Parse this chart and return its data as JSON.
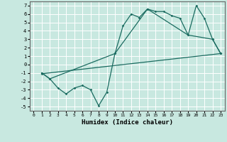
{
  "title": "",
  "xlabel": "Humidex (Indice chaleur)",
  "xlim": [
    -0.5,
    23.5
  ],
  "ylim": [
    -5.5,
    7.5
  ],
  "xticks": [
    0,
    1,
    2,
    3,
    4,
    5,
    6,
    7,
    8,
    9,
    10,
    11,
    12,
    13,
    14,
    15,
    16,
    17,
    18,
    19,
    20,
    21,
    22,
    23
  ],
  "yticks": [
    -5,
    -4,
    -3,
    -2,
    -1,
    0,
    1,
    2,
    3,
    4,
    5,
    6,
    7
  ],
  "bg_color": "#c8e8e0",
  "grid_color": "#b0d8d0",
  "line_color": "#1a6b60",
  "line1_x": [
    1,
    2,
    3,
    4,
    5,
    6,
    7,
    8,
    9,
    10,
    11,
    12,
    13,
    14,
    15,
    16,
    17,
    18,
    19,
    20,
    21,
    22,
    23
  ],
  "line1_y": [
    -1,
    -1.7,
    -2.8,
    -3.5,
    -2.8,
    -2.5,
    -3.0,
    -4.9,
    -3.3,
    1.3,
    4.6,
    6.0,
    5.6,
    6.6,
    6.3,
    6.3,
    5.8,
    5.5,
    3.5,
    7.0,
    5.5,
    3.0,
    1.3
  ],
  "line2_x": [
    1,
    2,
    10,
    14,
    19,
    22,
    23
  ],
  "line2_y": [
    -1,
    -1.7,
    1.3,
    6.6,
    3.5,
    3.0,
    1.3
  ],
  "line3_x": [
    1,
    23
  ],
  "line3_y": [
    -1.1,
    1.3
  ]
}
